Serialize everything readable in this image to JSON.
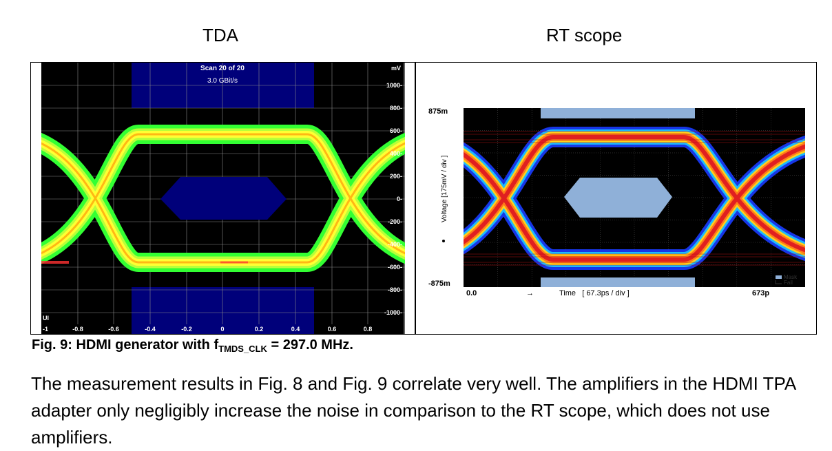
{
  "panels": {
    "left_title": "TDA",
    "right_title": "RT scope"
  },
  "tda": {
    "scan_text": "Scan 20 of 20",
    "rate_text": "3.0 GBit/s",
    "y_unit": "mV",
    "x_unit": "UI",
    "y_ticks": [
      "1000",
      "800",
      "600",
      "400",
      "200",
      "0",
      "-200",
      "-400",
      "-600",
      "-800",
      "-1000"
    ],
    "x_ticks": [
      "-1",
      "-0.8",
      "-0.6",
      "-0.4",
      "-0.2",
      "0",
      "0.2",
      "0.4",
      "0.6",
      "0.8"
    ],
    "colors": {
      "background": "#000000",
      "mask": "#00007a",
      "eye_outer": "#33ff33",
      "eye_inner": "#ffff33",
      "eye_core": "#ff8800"
    }
  },
  "rt": {
    "y_top_label": "875m",
    "y_bottom_label": "-875m",
    "y_axis_label": "Voltage  [175mV / div ]",
    "x_left_label": "0.0",
    "x_axis_label": "Time   [ 67.3ps / div ]",
    "x_right_label": "673p",
    "legend_mask": "Mask",
    "legend_fail": "Fail",
    "colors": {
      "background": "#000000",
      "mask": "#8fb0d8",
      "eye_outer": "#1a3cff",
      "eye_mid": "#ffd21a",
      "eye_core": "#e02020"
    }
  },
  "caption": {
    "prefix": "Fig. 9: HDMI generator with f",
    "subscript": "TMDS_CLK",
    "suffix": " = 297.0 MHz."
  },
  "body": {
    "text": "The measurement results in Fig. 8 and Fig. 9 correlate very well. The amplifiers in the HDMI TPA adapter only negligibly increase the noise in comparison to the RT scope, which does not use amplifiers."
  }
}
